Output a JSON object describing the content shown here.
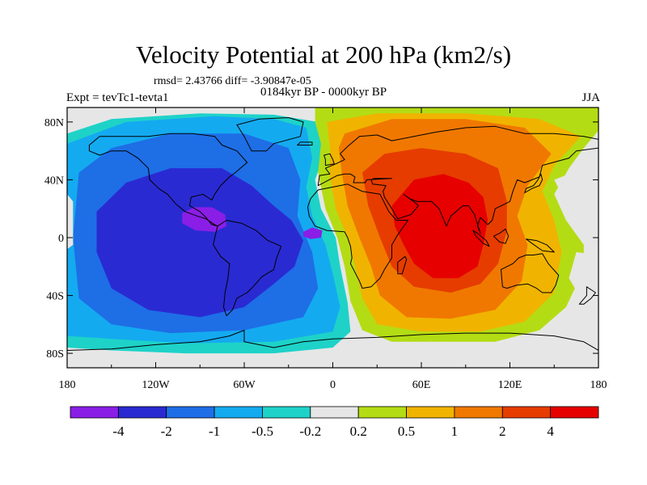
{
  "chart_data": {
    "type": "heatmap",
    "title": "Velocity Potential at 200 hPa (km2/s)",
    "stats": "rmsd= 2.43766 diff= -3.90847e-05",
    "left_label": "Expt = tevTc1-tevta1",
    "center_label": "0184kyr BP - 0000kyr BP",
    "right_label": "JJA",
    "x_ticks": [
      "180",
      "120W",
      "60W",
      "0",
      "60E",
      "120E",
      "180"
    ],
    "x_tick_values": [
      -180,
      -120,
      -60,
      0,
      60,
      120,
      180
    ],
    "y_ticks": [
      "80N",
      "40N",
      "0",
      "40S",
      "80S"
    ],
    "y_tick_values": [
      80,
      40,
      0,
      -40,
      -80
    ],
    "xlim": [
      -180,
      180
    ],
    "ylim": [
      -90,
      90
    ],
    "colorbar": {
      "levels": [
        "-4",
        "-2",
        "-1",
        "-0.5",
        "-0.2",
        "0.2",
        "0.5",
        "1",
        "2",
        "4"
      ],
      "level_values": [
        -4,
        -2,
        -1,
        -0.5,
        -0.2,
        0.2,
        0.5,
        1,
        2,
        4
      ],
      "colors": [
        "#8a1ee6",
        "#2a2ad2",
        "#1e6ee6",
        "#14aaf0",
        "#1ed2c8",
        "#e6e6e6",
        "#b4dc14",
        "#f0b400",
        "#f07800",
        "#e63c00",
        "#e60000"
      ]
    },
    "field_centers": [
      {
        "name": "min-central-america",
        "lon": -85,
        "lat": 12,
        "value": -4.5
      },
      {
        "name": "min-tropical-atlantic",
        "lon": -15,
        "lat": 2,
        "value": -4.2
      },
      {
        "name": "max-indian-ocean",
        "lon": 75,
        "lat": 0,
        "value": 4.5
      }
    ]
  }
}
